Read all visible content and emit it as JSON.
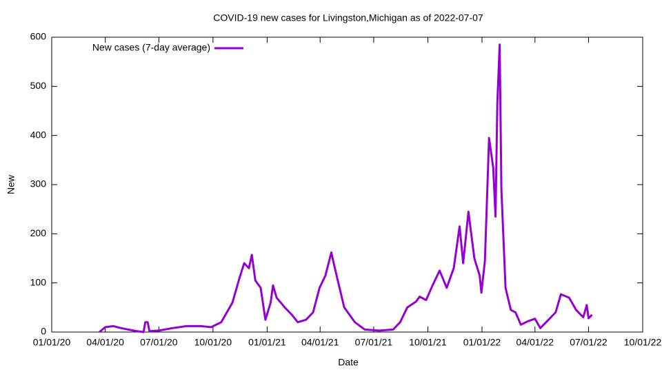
{
  "chart_data": {
    "type": "line",
    "title": "COVID-19 new cases for Livingston,Michigan as of 2022-07-07",
    "xlabel": "Date",
    "ylabel": "New",
    "x": [
      "2020-03-22",
      "2020-04-01",
      "2020-04-15",
      "2020-04-28",
      "2020-05-10",
      "2020-05-24",
      "2020-06-05",
      "2020-06-08",
      "2020-06-12",
      "2020-06-15",
      "2020-07-01",
      "2020-07-24",
      "2020-08-17",
      "2020-09-10",
      "2020-09-28",
      "2020-10-15",
      "2020-11-03",
      "2020-11-15",
      "2020-11-23",
      "2020-12-01",
      "2020-12-06",
      "2020-12-12",
      "2020-12-21",
      "2020-12-29",
      "2021-01-07",
      "2021-01-11",
      "2021-01-17",
      "2021-01-31",
      "2021-02-12",
      "2021-02-22",
      "2021-03-08",
      "2021-03-20",
      "2021-03-31",
      "2021-04-10",
      "2021-04-20",
      "2021-04-24",
      "2021-05-03",
      "2021-05-12",
      "2021-05-30",
      "2021-06-16",
      "2021-07-10",
      "2021-08-03",
      "2021-08-15",
      "2021-08-27",
      "2021-09-11",
      "2021-09-17",
      "2021-09-28",
      "2021-10-09",
      "2021-10-21",
      "2021-11-02",
      "2021-11-14",
      "2021-11-24",
      "2021-11-30",
      "2021-12-09",
      "2021-12-19",
      "2021-12-28",
      "2021-12-31",
      "2022-01-06",
      "2022-01-13",
      "2022-01-20",
      "2022-01-24",
      "2022-01-27",
      "2022-01-31",
      "2022-02-03",
      "2022-02-10",
      "2022-02-19",
      "2022-02-27",
      "2022-03-08",
      "2022-03-20",
      "2022-04-01",
      "2022-04-10",
      "2022-04-24",
      "2022-05-06",
      "2022-05-15",
      "2022-05-29",
      "2022-06-10",
      "2022-06-22",
      "2022-06-28",
      "2022-07-01",
      "2022-07-07"
    ],
    "series": [
      {
        "name": "New cases (7-day average)",
        "color": "#9400d3",
        "values": [
          0,
          10,
          12,
          8,
          5,
          2,
          0,
          20,
          20,
          2,
          3,
          8,
          12,
          12,
          10,
          20,
          60,
          110,
          140,
          130,
          157,
          105,
          90,
          25,
          60,
          95,
          70,
          50,
          35,
          20,
          25,
          40,
          90,
          115,
          162,
          140,
          95,
          50,
          20,
          5,
          3,
          5,
          20,
          50,
          62,
          72,
          65,
          95,
          125,
          90,
          130,
          215,
          140,
          245,
          150,
          115,
          80,
          145,
          395,
          335,
          235,
          465,
          585,
          290,
          90,
          45,
          40,
          15,
          22,
          27,
          8,
          25,
          40,
          77,
          70,
          45,
          30,
          55,
          28,
          35
        ]
      }
    ],
    "xlim": [
      "2020-01-01",
      "2022-10-01"
    ],
    "xticks": [
      {
        "value": "2020-01-01",
        "label": "01/01/20"
      },
      {
        "value": "2020-04-01",
        "label": "04/01/20"
      },
      {
        "value": "2020-07-01",
        "label": "07/01/20"
      },
      {
        "value": "2020-10-01",
        "label": "10/01/20"
      },
      {
        "value": "2021-01-01",
        "label": "01/01/21"
      },
      {
        "value": "2021-04-01",
        "label": "04/01/21"
      },
      {
        "value": "2021-07-01",
        "label": "07/01/21"
      },
      {
        "value": "2021-10-01",
        "label": "10/01/21"
      },
      {
        "value": "2022-01-01",
        "label": "01/01/22"
      },
      {
        "value": "2022-04-01",
        "label": "04/01/22"
      },
      {
        "value": "2022-07-01",
        "label": "07/01/22"
      },
      {
        "value": "2022-10-01",
        "label": "10/01/22"
      }
    ],
    "ylim": [
      0,
      600
    ],
    "yticks": [
      0,
      100,
      200,
      300,
      400,
      500,
      600
    ],
    "legend": "top-left"
  }
}
